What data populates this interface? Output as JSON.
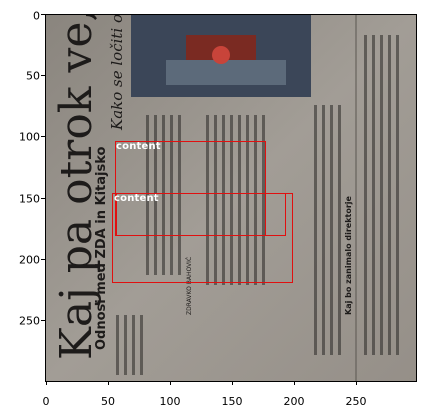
{
  "figure": {
    "x_ticks": [
      "0",
      "50",
      "100",
      "150",
      "200",
      "250"
    ],
    "y_ticks": [
      "0",
      "50",
      "100",
      "150",
      "200",
      "250"
    ]
  },
  "photo_text": {
    "headline": "Kaj pa otrok ve, koli",
    "subheadline": "Kako se ločiti od kit",
    "section": "Odnosi med ZDA in Kitajsko",
    "right_heading": "Kaj bo zanimalo direktorje",
    "byline": "ZDRAVKO BAHOVIĆ"
  },
  "detections": [
    {
      "label": "content"
    },
    {
      "label": "content"
    }
  ],
  "colors": {
    "box": "#e01010",
    "label_text": "#ffffff",
    "paper": "#9a958e",
    "ink": "#1d1b1a"
  }
}
